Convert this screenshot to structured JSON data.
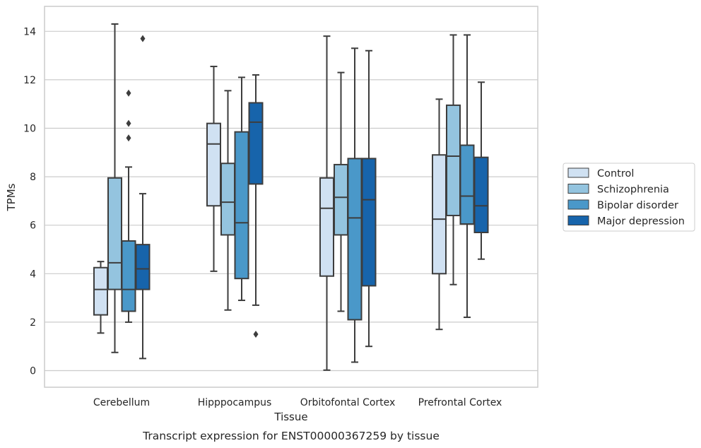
{
  "chart_data": {
    "type": "box",
    "title": "",
    "caption": "Transcript expression for ENST00000367259 by tissue",
    "xlabel": "Tissue",
    "ylabel": "TPMs",
    "ylim": [
      -0.7,
      15
    ],
    "yticks": [
      0,
      2,
      4,
      6,
      8,
      10,
      12,
      14
    ],
    "grid": true,
    "legend_position": "right",
    "categories": [
      "Cerebellum",
      "Hipppocampus",
      "Orbitofontal Cortex",
      "Prefrontal Cortex"
    ],
    "series": [
      {
        "name": "Control",
        "color": "#d0e1f2",
        "boxes": [
          {
            "whislo": 1.55,
            "q1": 2.3,
            "med": 3.35,
            "q3": 4.25,
            "whishi": 4.5,
            "fliers": []
          },
          {
            "whislo": 4.1,
            "q1": 6.8,
            "med": 9.35,
            "q3": 10.2,
            "whishi": 12.55,
            "fliers": []
          },
          {
            "whislo": 0.02,
            "q1": 3.9,
            "med": 6.7,
            "q3": 7.95,
            "whishi": 13.8,
            "fliers": []
          },
          {
            "whislo": 1.7,
            "q1": 4.0,
            "med": 6.25,
            "q3": 8.9,
            "whishi": 11.2,
            "fliers": []
          }
        ]
      },
      {
        "name": "Schizophrenia",
        "color": "#94c4df",
        "boxes": [
          {
            "whislo": 0.75,
            "q1": 3.35,
            "med": 4.45,
            "q3": 7.95,
            "whishi": 14.3,
            "fliers": []
          },
          {
            "whislo": 2.5,
            "q1": 5.6,
            "med": 6.95,
            "q3": 8.55,
            "whishi": 11.55,
            "fliers": []
          },
          {
            "whislo": 2.45,
            "q1": 5.6,
            "med": 7.15,
            "q3": 8.5,
            "whishi": 12.3,
            "fliers": []
          },
          {
            "whislo": 3.55,
            "q1": 6.4,
            "med": 8.85,
            "q3": 10.95,
            "whishi": 13.85,
            "fliers": []
          }
        ]
      },
      {
        "name": "Bipolar disorder",
        "color": "#4a98c9",
        "boxes": [
          {
            "whislo": 2.0,
            "q1": 2.45,
            "med": 3.35,
            "q3": 5.35,
            "whishi": 8.4,
            "fliers": [
              9.6,
              10.2,
              11.45
            ]
          },
          {
            "whislo": 2.9,
            "q1": 3.8,
            "med": 6.1,
            "q3": 9.85,
            "whishi": 12.1,
            "fliers": []
          },
          {
            "whislo": 0.35,
            "q1": 2.1,
            "med": 6.3,
            "q3": 8.75,
            "whishi": 13.3,
            "fliers": []
          },
          {
            "whislo": 2.2,
            "q1": 6.05,
            "med": 7.2,
            "q3": 9.3,
            "whishi": 13.85,
            "fliers": []
          }
        ]
      },
      {
        "name": "Major depression",
        "color": "#1764ab",
        "boxes": [
          {
            "whislo": 0.5,
            "q1": 3.35,
            "med": 4.2,
            "q3": 5.2,
            "whishi": 7.3,
            "fliers": [
              13.7
            ]
          },
          {
            "whislo": 2.7,
            "q1": 7.7,
            "med": 10.25,
            "q3": 11.05,
            "whishi": 12.2,
            "fliers": [
              1.5
            ]
          },
          {
            "whislo": 1.0,
            "q1": 3.5,
            "med": 7.05,
            "q3": 8.75,
            "whishi": 13.2,
            "fliers": []
          },
          {
            "whislo": 4.6,
            "q1": 5.7,
            "med": 6.8,
            "q3": 8.8,
            "whishi": 11.9,
            "fliers": []
          }
        ]
      }
    ]
  }
}
